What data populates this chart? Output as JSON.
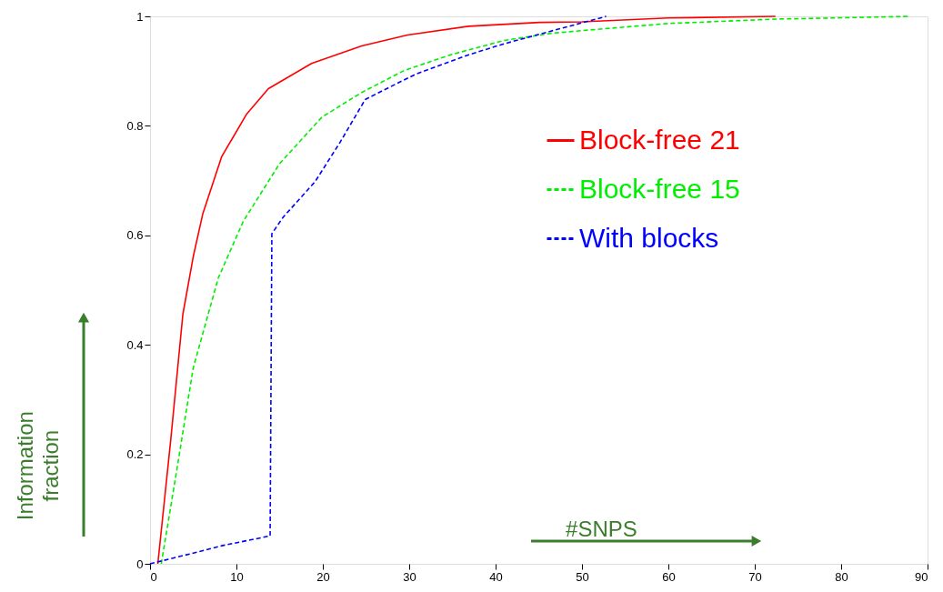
{
  "chart_data": {
    "type": "line",
    "xlabel": "#SNPS",
    "ylabel": "Information fraction",
    "xlim": [
      0,
      90
    ],
    "ylim": [
      0,
      1
    ],
    "xticks": [
      0,
      10,
      20,
      30,
      40,
      50,
      60,
      70,
      80,
      90
    ],
    "yticks": [
      0,
      0.2,
      0.4,
      0.6,
      0.8,
      1
    ],
    "grid": false,
    "legend": "right",
    "marker": "none",
    "series": [
      {
        "name": "Block-free 21",
        "color": "#ff0000",
        "line_style": "solid",
        "x": [
          0.9,
          2.4,
          3.8,
          5.0,
          6.1,
          8.3,
          11.2,
          13.7,
          18.7,
          24.5,
          29.8,
          36.9,
          45.1,
          50,
          60,
          72.4
        ],
        "values": [
          0,
          0.227,
          0.456,
          0.561,
          0.639,
          0.744,
          0.822,
          0.868,
          0.914,
          0.946,
          0.966,
          0.982,
          0.989,
          0.99,
          0.997,
          1
        ]
      },
      {
        "name": "Block-free 15",
        "color": "#00ee00",
        "line_style": "dashed",
        "x": [
          1.3,
          3.0,
          5.0,
          7.9,
          10.8,
          15.0,
          19.9,
          24.5,
          29.4,
          34.8,
          41.0,
          46.4,
          50,
          60,
          72.4,
          88
        ],
        "values": [
          0,
          0.162,
          0.358,
          0.522,
          0.626,
          0.731,
          0.816,
          0.861,
          0.901,
          0.93,
          0.956,
          0.969,
          0.974,
          0.987,
          0.995,
          1
        ]
      },
      {
        "name": "With blocks",
        "color": "#0000ff",
        "line_style": "dashed",
        "x": [
          0,
          4.6,
          8.3,
          13.9,
          14.1,
          15.4,
          19.1,
          22.0,
          24.9,
          26.5,
          30.7,
          36.9,
          41.0,
          46.4,
          52.8
        ],
        "values": [
          0,
          0.018,
          0.033,
          0.051,
          0.603,
          0.633,
          0.698,
          0.77,
          0.848,
          0.861,
          0.894,
          0.93,
          0.95,
          0.973,
          1
        ]
      }
    ]
  }
}
